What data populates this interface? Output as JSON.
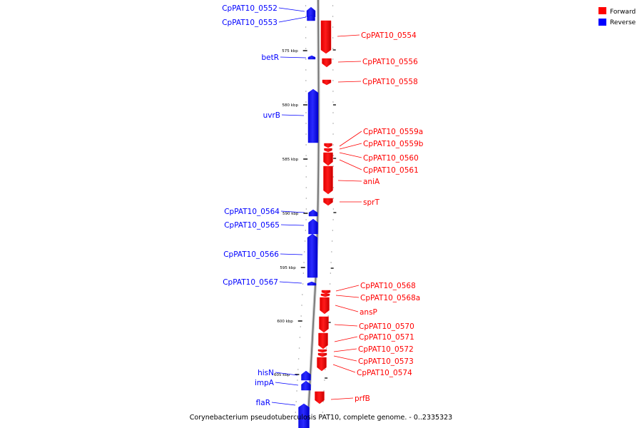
{
  "caption": "Corynebacterium pseudotuberculosis PAT10, complete genome. - 0..2335323",
  "legend": [
    {
      "label": "Forward",
      "color": "#ff0000"
    },
    {
      "label": "Reverse",
      "color": "#0000ff"
    }
  ],
  "scale_ticks": [
    "575 kbp",
    "580 kbp",
    "585 kbp",
    "590 kbp",
    "595 kbp",
    "600 kbp",
    "605 kbp"
  ],
  "genes": [
    {
      "name": "CpPAT10_0552",
      "strand": "Reverse"
    },
    {
      "name": "CpPAT10_0553",
      "strand": "Reverse"
    },
    {
      "name": "CpPAT10_0554",
      "strand": "Forward"
    },
    {
      "name": "betR",
      "strand": "Reverse"
    },
    {
      "name": "CpPAT10_0556",
      "strand": "Forward"
    },
    {
      "name": "CpPAT10_0558",
      "strand": "Forward"
    },
    {
      "name": "uvrB",
      "strand": "Reverse"
    },
    {
      "name": "CpPAT10_0559a",
      "strand": "Forward"
    },
    {
      "name": "CpPAT10_0559b",
      "strand": "Forward"
    },
    {
      "name": "CpPAT10_0560",
      "strand": "Forward"
    },
    {
      "name": "CpPAT10_0561",
      "strand": "Forward"
    },
    {
      "name": "aniA",
      "strand": "Forward"
    },
    {
      "name": "sprT",
      "strand": "Forward"
    },
    {
      "name": "CpPAT10_0564",
      "strand": "Reverse"
    },
    {
      "name": "CpPAT10_0565",
      "strand": "Reverse"
    },
    {
      "name": "CpPAT10_0566",
      "strand": "Reverse"
    },
    {
      "name": "CpPAT10_0567",
      "strand": "Reverse"
    },
    {
      "name": "CpPAT10_0568",
      "strand": "Forward"
    },
    {
      "name": "CpPAT10_0568a",
      "strand": "Forward"
    },
    {
      "name": "ansP",
      "strand": "Forward"
    },
    {
      "name": "CpPAT10_0570",
      "strand": "Forward"
    },
    {
      "name": "CpPAT10_0571",
      "strand": "Forward"
    },
    {
      "name": "CpPAT10_0572",
      "strand": "Forward"
    },
    {
      "name": "CpPAT10_0573",
      "strand": "Forward"
    },
    {
      "name": "CpPAT10_0574",
      "strand": "Forward"
    },
    {
      "name": "hisN",
      "strand": "Reverse"
    },
    {
      "name": "impA",
      "strand": "Reverse"
    },
    {
      "name": "prfB",
      "strand": "Forward"
    },
    {
      "name": "flaR",
      "strand": "Reverse"
    }
  ]
}
